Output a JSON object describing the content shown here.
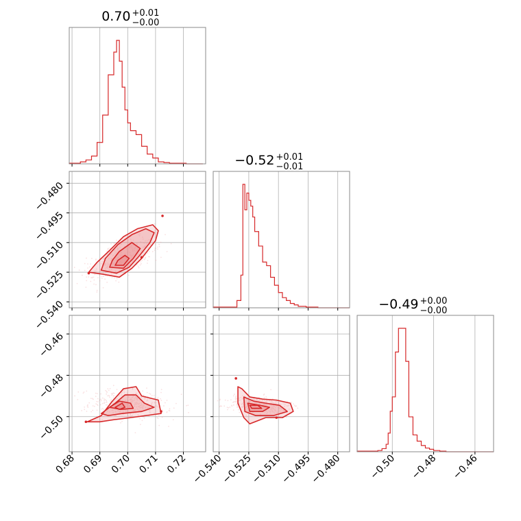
{
  "colors": {
    "series": "#d62728",
    "fill": "#e98b8c",
    "grid": "#b0b0b0",
    "frame": "#888888"
  },
  "chart_data": {
    "type": "corner",
    "grid": true,
    "params": [
      {
        "title_value": "0.70",
        "title_plus": "+0.01",
        "title_minus": "−0.00",
        "range": [
          0.679,
          0.728
        ],
        "ticks": [
          0.68,
          0.69,
          0.7,
          0.71,
          0.72
        ],
        "tick_labels": [
          "0.68",
          "0.69",
          "0.70",
          "0.71",
          "0.72"
        ],
        "hist_bins": [
          0.679,
          0.681,
          0.683,
          0.685,
          0.687,
          0.689,
          0.691,
          0.693,
          0.695,
          0.696,
          0.697,
          0.698,
          0.699,
          0.7,
          0.701,
          0.703,
          0.705,
          0.707,
          0.709,
          0.711,
          0.713,
          0.715,
          0.717,
          0.719,
          0.721,
          0.724,
          0.727
        ],
        "hist_counts": [
          1,
          1,
          3,
          6,
          12,
          33,
          75,
          137,
          172,
          190,
          158,
          118,
          83,
          63,
          51,
          45,
          27,
          15,
          9,
          3,
          2,
          1,
          1,
          1,
          0,
          0
        ]
      },
      {
        "title_value": "−0.52",
        "title_plus": "+0.01",
        "title_minus": "−0.01",
        "range": [
          -0.543,
          -0.474
        ],
        "ticks": [
          -0.54,
          -0.525,
          -0.51,
          -0.495,
          -0.48
        ],
        "tick_labels": [
          "−0.540",
          "−0.525",
          "−0.510",
          "−0.495",
          "−0.480"
        ],
        "hist_bins": [
          -0.543,
          -0.531,
          -0.529,
          -0.528,
          -0.527,
          -0.526,
          -0.525,
          -0.524,
          -0.523,
          -0.522,
          -0.52,
          -0.518,
          -0.516,
          -0.514,
          -0.512,
          -0.51,
          -0.508,
          -0.506,
          -0.504,
          -0.502,
          -0.5,
          -0.496,
          -0.49,
          -0.48,
          -0.474
        ],
        "hist_counts": [
          1,
          10,
          45,
          170,
          135,
          158,
          148,
          140,
          125,
          105,
          85,
          63,
          58,
          42,
          31,
          21,
          14,
          10,
          6,
          4,
          2,
          1,
          0,
          0
        ]
      },
      {
        "title_value": "−0.49",
        "title_plus": "+0.00",
        "title_minus": "−0.00",
        "range": [
          -0.517,
          -0.451
        ],
        "ticks": [
          -0.5,
          -0.48,
          -0.46
        ],
        "tick_labels": [
          "−0.50",
          "−0.48",
          "−0.46"
        ],
        "hist_bins": [
          -0.517,
          -0.507,
          -0.505,
          -0.503,
          -0.502,
          -0.501,
          -0.5,
          -0.4985,
          -0.497,
          -0.4935,
          -0.492,
          -0.49,
          -0.488,
          -0.486,
          -0.484,
          -0.482,
          -0.48,
          -0.477,
          -0.474,
          -0.47,
          -0.46,
          -0.451
        ],
        "hist_counts": [
          1,
          2,
          5,
          12,
          30,
          65,
          88,
          160,
          198,
          145,
          56,
          27,
          17,
          10,
          6,
          4,
          2,
          1,
          0,
          0,
          0
        ]
      }
    ],
    "pairs": [
      {
        "x_param": 0,
        "y_param": 1,
        "cloud": {
          "center": [
            0.698,
            -0.518
          ],
          "dir": [
            0.0095,
            0.0105
          ],
          "width": [
            0.007,
            -0.0035
          ]
        },
        "contours": [
          [
            [
              0.686,
              -0.525
            ],
            [
              0.691,
              -0.526
            ],
            [
              0.697,
              -0.5275
            ],
            [
              0.7015,
              -0.523
            ],
            [
              0.705,
              -0.518
            ],
            [
              0.71,
              -0.509
            ],
            [
              0.711,
              -0.504
            ],
            [
              0.709,
              -0.501
            ],
            [
              0.7035,
              -0.503
            ],
            [
              0.6985,
              -0.507
            ],
            [
              0.6935,
              -0.514
            ],
            [
              0.689,
              -0.52
            ]
          ],
          [
            [
              0.6905,
              -0.524
            ],
            [
              0.696,
              -0.5255
            ],
            [
              0.7005,
              -0.5225
            ],
            [
              0.704,
              -0.517
            ],
            [
              0.708,
              -0.51
            ],
            [
              0.7095,
              -0.505
            ],
            [
              0.7065,
              -0.503
            ],
            [
              0.7015,
              -0.506
            ],
            [
              0.6965,
              -0.511
            ],
            [
              0.692,
              -0.518
            ]
          ],
          [
            [
              0.6935,
              -0.5225
            ],
            [
              0.6985,
              -0.523
            ],
            [
              0.702,
              -0.518
            ],
            [
              0.7045,
              -0.513
            ],
            [
              0.7015,
              -0.51
            ],
            [
              0.697,
              -0.5145
            ],
            [
              0.6945,
              -0.519
            ]
          ],
          [
            [
              0.6955,
              -0.5215
            ],
            [
              0.6985,
              -0.5215
            ],
            [
              0.7005,
              -0.518
            ],
            [
              0.699,
              -0.5165
            ],
            [
              0.6965,
              -0.519
            ]
          ]
        ],
        "points": [
          [
            0.7125,
            -0.4965
          ],
          [
            0.705,
            -0.5175
          ],
          [
            0.686,
            -0.5255
          ]
        ]
      },
      {
        "x_param": 0,
        "y_param": 2,
        "cloud": {
          "center": [
            0.7,
            -0.494
          ],
          "dir": [
            0.013,
            0
          ],
          "width": [
            -0.003,
            0.0065
          ]
        },
        "contours": [
          [
            [
              0.6855,
              -0.5025
            ],
            [
              0.6905,
              -0.4995
            ],
            [
              0.6945,
              -0.4925
            ],
            [
              0.6985,
              -0.4865
            ],
            [
              0.703,
              -0.4855
            ],
            [
              0.705,
              -0.49
            ],
            [
              0.711,
              -0.492
            ],
            [
              0.712,
              -0.4985
            ],
            [
              0.7065,
              -0.4995
            ],
            [
              0.701,
              -0.5005
            ],
            [
              0.695,
              -0.5015
            ],
            [
              0.69,
              -0.5025
            ]
          ],
          [
            [
              0.6905,
              -0.4985
            ],
            [
              0.6955,
              -0.4935
            ],
            [
              0.699,
              -0.4895
            ],
            [
              0.703,
              -0.4895
            ],
            [
              0.706,
              -0.4935
            ],
            [
              0.7095,
              -0.4955
            ],
            [
              0.705,
              -0.4975
            ],
            [
              0.698,
              -0.4985
            ],
            [
              0.693,
              -0.4995
            ]
          ],
          [
            [
              0.6935,
              -0.4955
            ],
            [
              0.697,
              -0.4925
            ],
            [
              0.701,
              -0.4935
            ],
            [
              0.702,
              -0.496
            ],
            [
              0.6975,
              -0.4965
            ]
          ],
          [
            [
              0.6955,
              -0.4955
            ],
            [
              0.698,
              -0.4935
            ],
            [
              0.699,
              -0.4955
            ],
            [
              0.697,
              -0.4965
            ]
          ]
        ],
        "points": [
          [
            0.712,
            -0.4975
          ],
          [
            0.685,
            -0.5025
          ]
        ]
      },
      {
        "x_param": 1,
        "y_param": 2,
        "cloud": {
          "center": [
            -0.519,
            -0.4945
          ],
          "dir": [
            0.014,
            0
          ],
          "width": [
            -0.004,
            0.004
          ]
        },
        "contours": [
          [
            [
              -0.5305,
              -0.4855
            ],
            [
              -0.5285,
              -0.4865
            ],
            [
              -0.5245,
              -0.4905
            ],
            [
              -0.518,
              -0.4915
            ],
            [
              -0.511,
              -0.492
            ],
            [
              -0.504,
              -0.4935
            ],
            [
              -0.5025,
              -0.4975
            ],
            [
              -0.508,
              -0.5005
            ],
            [
              -0.5165,
              -0.5005
            ],
            [
              -0.5245,
              -0.5035
            ],
            [
              -0.5275,
              -0.5005
            ],
            [
              -0.5305,
              -0.4935
            ]
          ],
          [
            [
              -0.5275,
              -0.4905
            ],
            [
              -0.5225,
              -0.4925
            ],
            [
              -0.5165,
              -0.4935
            ],
            [
              -0.5095,
              -0.4945
            ],
            [
              -0.5055,
              -0.4975
            ],
            [
              -0.5125,
              -0.4995
            ],
            [
              -0.5215,
              -0.4995
            ],
            [
              -0.527,
              -0.4975
            ]
          ],
          [
            [
              -0.5255,
              -0.4935
            ],
            [
              -0.5195,
              -0.4945
            ],
            [
              -0.5145,
              -0.4955
            ],
            [
              -0.518,
              -0.4975
            ],
            [
              -0.5245,
              -0.4975
            ]
          ],
          [
            [
              -0.5245,
              -0.4945
            ],
            [
              -0.5205,
              -0.4945
            ],
            [
              -0.5185,
              -0.496
            ],
            [
              -0.5235,
              -0.496
            ]
          ]
        ],
        "points": [
          [
            -0.5315,
            -0.4815
          ],
          [
            -0.511,
            -0.5005
          ]
        ]
      }
    ]
  }
}
